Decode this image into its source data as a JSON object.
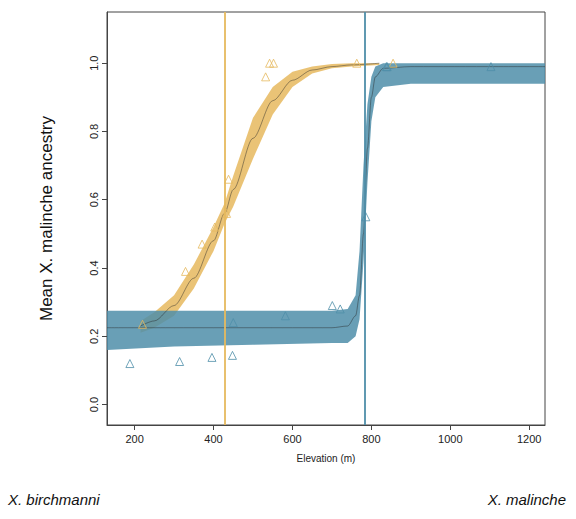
{
  "chart_data": {
    "type": "scatter",
    "xlabel": "Elevation (m)",
    "ylabel": "Mean X. malinche ancestry",
    "annotations": [
      "X. birchmanni",
      "X. malinche"
    ],
    "xlim": [
      130,
      1240
    ],
    "ylim": [
      -0.06,
      1.15
    ],
    "xticks": [
      200,
      400,
      600,
      800,
      1000,
      1200
    ],
    "yticks": [
      {
        "value": 0,
        "label": "0.0"
      },
      {
        "value": 0.2,
        "label": "0.2"
      },
      {
        "value": 0.4,
        "label": "0.4"
      },
      {
        "value": 0.6,
        "label": "0.6"
      },
      {
        "value": 0.8,
        "label": "0.8"
      },
      {
        "value": 1,
        "label": "1.0"
      }
    ],
    "grid": false,
    "series": [
      {
        "color": "#E6B95E",
        "marker": "triangle_open",
        "x": [
          220,
          329,
          371,
          403,
          433,
          438,
          532,
          542,
          552,
          763,
          855
        ],
        "values": [
          0.235,
          0.39,
          0.47,
          0.52,
          0.56,
          0.66,
          0.96,
          1.0,
          1.0,
          1.0,
          1.0
        ],
        "fit_x": [
          215,
          250,
          300,
          350,
          400,
          428,
          450,
          500,
          550,
          600,
          650,
          700,
          750,
          820
        ],
        "fit": [
          0.23,
          0.245,
          0.29,
          0.37,
          0.48,
          0.56,
          0.63,
          0.78,
          0.89,
          0.95,
          0.98,
          0.99,
          0.995,
          1.0
        ],
        "fit_lower": [
          0.21,
          0.225,
          0.26,
          0.34,
          0.45,
          0.53,
          0.58,
          0.72,
          0.85,
          0.93,
          0.97,
          0.985,
          0.99,
          0.995
        ],
        "fit_upper": [
          0.245,
          0.27,
          0.32,
          0.41,
          0.52,
          0.59,
          0.67,
          0.84,
          0.93,
          0.975,
          0.99,
          0.998,
          1.0,
          1.0
        ],
        "center": 428
      },
      {
        "color": "#4F8EA9",
        "marker": "triangle_open",
        "x": [
          188,
          314,
          396,
          448,
          450,
          582,
          701,
          721,
          786,
          838,
          840,
          1103
        ],
        "values": [
          0.12,
          0.126,
          0.138,
          0.144,
          0.24,
          0.26,
          0.29,
          0.28,
          0.55,
          0.99,
          0.99,
          0.99
        ],
        "fit_x": [
          130,
          300,
          500,
          700,
          740,
          760,
          770,
          780,
          790,
          800,
          810,
          830,
          900,
          1240
        ],
        "fit": [
          0.225,
          0.225,
          0.225,
          0.225,
          0.23,
          0.26,
          0.32,
          0.5,
          0.75,
          0.9,
          0.96,
          0.985,
          0.99,
          0.99
        ],
        "fit_lower": [
          0.16,
          0.17,
          0.175,
          0.18,
          0.18,
          0.2,
          0.25,
          0.42,
          0.65,
          0.83,
          0.9,
          0.93,
          0.94,
          0.94
        ],
        "fit_upper": [
          0.275,
          0.275,
          0.275,
          0.275,
          0.28,
          0.32,
          0.45,
          0.7,
          0.88,
          0.96,
          0.99,
          1.0,
          1.0,
          1.0
        ],
        "center": 783
      }
    ]
  }
}
